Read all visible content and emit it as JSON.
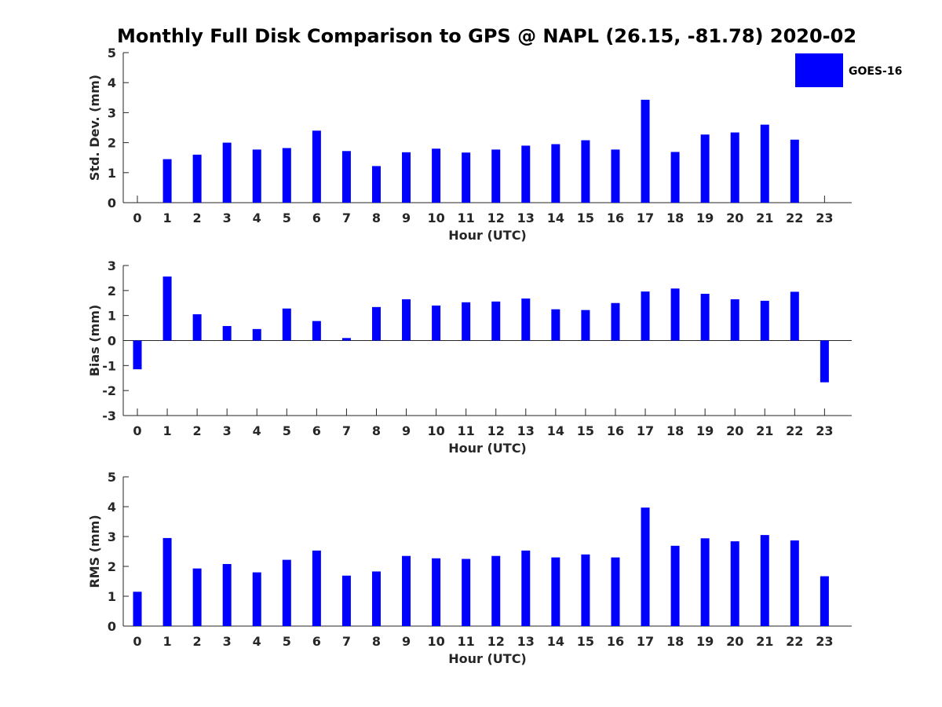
{
  "figure_title": "Monthly Full Disk Comparison to GPS @ NAPL (26.15, -81.78) 2020-02",
  "colors": {
    "bar": "#0000ff",
    "axis": "#262626",
    "title": "#000000"
  },
  "legend": {
    "entries": [
      "GOES-16"
    ],
    "placement": "top-right"
  },
  "chart_data": [
    {
      "type": "bar",
      "title": "Monthly Full Disk Comparison to GPS @ NAPL (26.15, -81.78) 2020-02",
      "xlabel": "Hour (UTC)",
      "ylabel": "Std. Dev. (mm)",
      "ylim": [
        0,
        5
      ],
      "yticks": [
        0,
        1,
        2,
        3,
        4,
        5
      ],
      "categories": [
        "0",
        "1",
        "2",
        "3",
        "4",
        "5",
        "6",
        "7",
        "8",
        "9",
        "10",
        "11",
        "12",
        "13",
        "14",
        "15",
        "16",
        "17",
        "18",
        "19",
        "20",
        "21",
        "22",
        "23"
      ],
      "series": [
        {
          "name": "GOES-16",
          "values": [
            0,
            1.45,
            1.6,
            2.0,
            1.77,
            1.82,
            2.4,
            1.72,
            1.22,
            1.68,
            1.8,
            1.67,
            1.77,
            1.9,
            1.95,
            2.08,
            1.77,
            3.43,
            1.69,
            2.27,
            2.34,
            2.6,
            2.1,
            0
          ]
        }
      ]
    },
    {
      "type": "bar",
      "xlabel": "Hour (UTC)",
      "ylabel": "Bias (mm)",
      "ylim": [
        -3,
        3
      ],
      "yticks": [
        -3,
        -2,
        -1,
        0,
        1,
        2,
        3
      ],
      "categories": [
        "0",
        "1",
        "2",
        "3",
        "4",
        "5",
        "6",
        "7",
        "8",
        "9",
        "10",
        "11",
        "12",
        "13",
        "14",
        "15",
        "16",
        "17",
        "18",
        "19",
        "20",
        "21",
        "22",
        "23"
      ],
      "series": [
        {
          "name": "GOES-16",
          "values": [
            -1.15,
            2.56,
            1.05,
            0.58,
            0.46,
            1.28,
            0.78,
            0.1,
            1.34,
            1.65,
            1.4,
            1.53,
            1.56,
            1.68,
            1.25,
            1.22,
            1.5,
            1.96,
            2.08,
            1.87,
            1.65,
            1.59,
            1.95,
            -1.67
          ]
        }
      ]
    },
    {
      "type": "bar",
      "xlabel": "Hour (UTC)",
      "ylabel": "RMS (mm)",
      "ylim": [
        0,
        5
      ],
      "yticks": [
        0,
        1,
        2,
        3,
        4,
        5
      ],
      "categories": [
        "0",
        "1",
        "2",
        "3",
        "4",
        "5",
        "6",
        "7",
        "8",
        "9",
        "10",
        "11",
        "12",
        "13",
        "14",
        "15",
        "16",
        "17",
        "18",
        "19",
        "20",
        "21",
        "22",
        "23"
      ],
      "series": [
        {
          "name": "GOES-16",
          "values": [
            1.15,
            2.95,
            1.93,
            2.08,
            1.8,
            2.22,
            2.53,
            1.69,
            1.83,
            2.35,
            2.27,
            2.25,
            2.35,
            2.53,
            2.3,
            2.4,
            2.3,
            3.97,
            2.69,
            2.94,
            2.84,
            3.05,
            2.87,
            1.67
          ]
        }
      ]
    }
  ]
}
